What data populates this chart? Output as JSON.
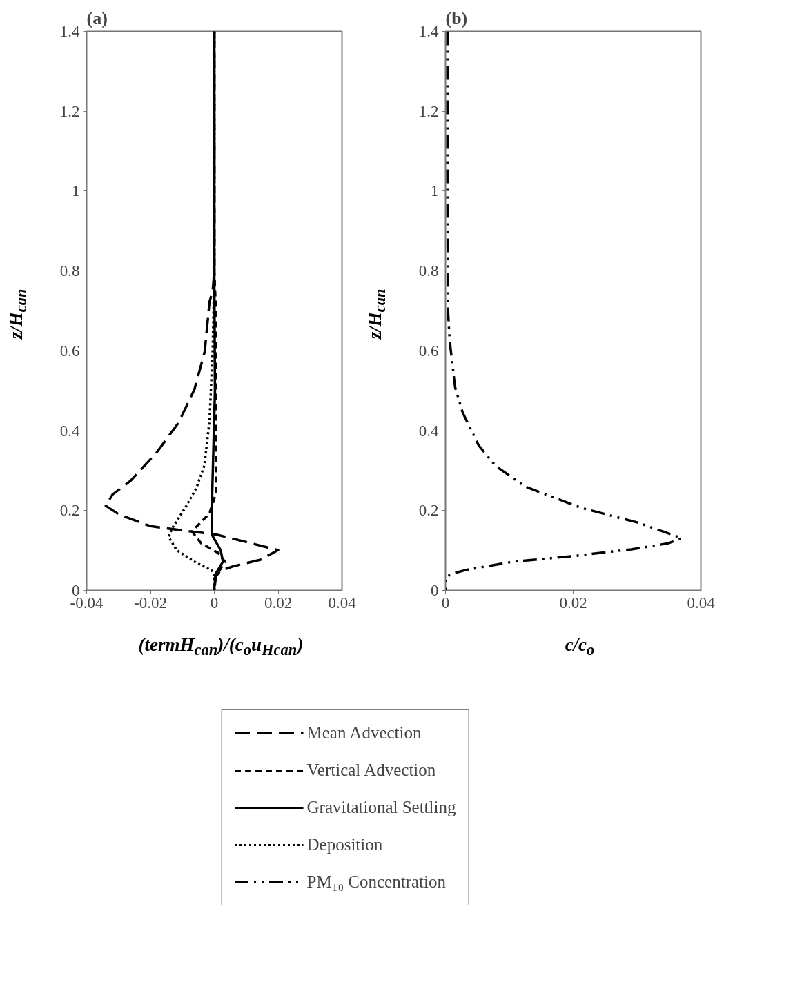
{
  "chart_data": [
    {
      "type": "line",
      "title": "(a)",
      "xlabel": "(termH$_{can}$)/(c$_{o}$u$_{Hcan}$)",
      "ylabel": "z/H$_{can}$",
      "xlim": [
        -0.04,
        0.04
      ],
      "xticks": [
        -0.04,
        -0.02,
        0,
        0.02,
        0.04
      ],
      "ylim": [
        0,
        1.4
      ],
      "yticks": [
        0,
        0.2,
        0.4,
        0.6,
        0.8,
        1,
        1.2,
        1.4
      ],
      "grid": false,
      "legend": "bottom",
      "marker": "none",
      "series": [
        {
          "name": "Mean Advection",
          "color": "#000000",
          "line_style": "longdash",
          "x": [
            0,
            0,
            -0.0005,
            -0.0015,
            -0.003,
            -0.0062,
            -0.0112,
            -0.018,
            -0.0263,
            -0.0319,
            -0.034,
            -0.0298,
            -0.02,
            -0.0077,
            0.0006,
            0.0116,
            0.02,
            0.0145,
            0.0062,
            0.002,
            0.0005,
            0
          ],
          "values": [
            1.4,
            0.8,
            0.75,
            0.723,
            0.598,
            0.504,
            0.42,
            0.346,
            0.274,
            0.24,
            0.212,
            0.19,
            0.161,
            0.148,
            0.14,
            0.118,
            0.101,
            0.077,
            0.061,
            0.05,
            0.035,
            0
          ]
        },
        {
          "name": "Vertical Advection",
          "color": "#000000",
          "line_style": "dashed",
          "x": [
            0,
            0,
            0.0005,
            0.0006,
            0.0006,
            -0.0015,
            -0.007,
            -0.0041,
            0.0012,
            0.0033,
            0.0012,
            0,
            0
          ],
          "values": [
            1.4,
            0.8,
            0.7,
            0.5,
            0.245,
            0.193,
            0.148,
            0.118,
            0.094,
            0.072,
            0.044,
            0.03,
            0
          ]
        },
        {
          "name": "Gravitational Settling",
          "color": "#000000",
          "line_style": "solid",
          "x": [
            0,
            0,
            0.0002,
            -0.0008,
            -0.0008,
            0.002,
            0.0027,
            0.0006,
            0,
            0
          ],
          "values": [
            1.4,
            0.8,
            0.5,
            0.2,
            0.14,
            0.101,
            0.072,
            0.044,
            0.01,
            0
          ]
        },
        {
          "name": "Deposition",
          "color": "#000000",
          "line_style": "dotted",
          "x": [
            0,
            0,
            -0.0005,
            -0.001,
            -0.0015,
            -0.0031,
            -0.0056,
            -0.0091,
            -0.0132,
            -0.0143,
            -0.0118,
            -0.0062,
            -0.0008,
            0,
            0
          ],
          "values": [
            1.4,
            0.8,
            0.6,
            0.514,
            0.425,
            0.313,
            0.257,
            0.207,
            0.156,
            0.134,
            0.101,
            0.072,
            0.05,
            0.04,
            0
          ]
        }
      ]
    },
    {
      "type": "line",
      "title": "(b)",
      "xlabel": "c/c$_{o}$",
      "ylabel": "z/H$_{can}$",
      "xlim": [
        0,
        0.04
      ],
      "xticks": [
        0,
        0.02,
        0.04
      ],
      "ylim": [
        0,
        1.4
      ],
      "yticks": [
        0,
        0.2,
        0.4,
        0.6,
        0.8,
        1,
        1.2,
        1.4
      ],
      "grid": false,
      "legend": "bottom",
      "marker": "none",
      "series": [
        {
          "name": "PM₁₀ Concentration",
          "color": "#000000",
          "line_style": "dashdotdot",
          "x": [
            0.0003,
            0.0003,
            0.0004,
            0.0006,
            0.0008,
            0.0015,
            0.0027,
            0.0052,
            0.0079,
            0.0125,
            0.0212,
            0.0301,
            0.037,
            0.0349,
            0.0291,
            0.02,
            0.0106,
            0.0034,
            0.0015,
            0.0001,
            0
          ],
          "values": [
            1.4,
            1.0,
            0.7,
            0.639,
            0.605,
            0.509,
            0.445,
            0.363,
            0.311,
            0.26,
            0.207,
            0.17,
            0.131,
            0.118,
            0.103,
            0.086,
            0.072,
            0.052,
            0.044,
            0.034,
            0
          ]
        }
      ]
    }
  ]
}
